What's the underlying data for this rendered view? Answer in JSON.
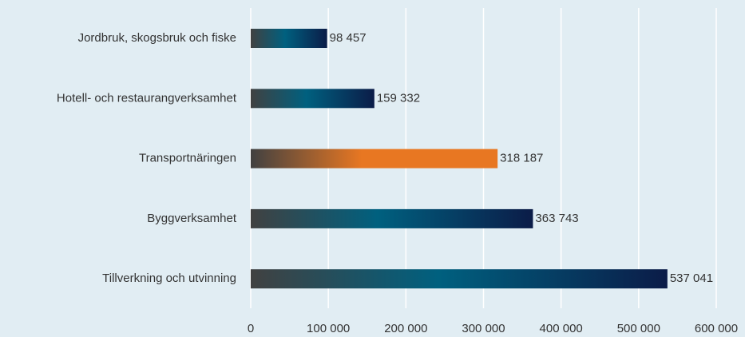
{
  "chart_data": {
    "type": "barh",
    "categories": [
      "Jordbruk, skogsbruk och fiske",
      "Hotell- och restaurangverksamhet",
      "Transportnäringen",
      "Byggverksamhet",
      "Tillverkning och utvinning"
    ],
    "values": [
      98457,
      159332,
      318187,
      363743,
      537041
    ],
    "value_labels": [
      "98 457",
      "159 332",
      "318 187",
      "363 743",
      "537 041"
    ],
    "colors": [
      "#0b1c48",
      "#0b1c48",
      "#e87722",
      "#0b1c48",
      "#0b1c48"
    ],
    "xlim": [
      0,
      600000
    ],
    "xticks": [
      0,
      {
        "value": 100000,
        "label": "100 000"
      },
      {
        "value": 200000,
        "label": "200 000"
      },
      {
        "value": 300000,
        "label": "300 000"
      },
      {
        "value": 400000,
        "label": "400 000"
      },
      {
        "value": 500000,
        "label": "500 000"
      },
      {
        "value": 600000,
        "label": "600 000"
      }
    ],
    "grid": true
  }
}
